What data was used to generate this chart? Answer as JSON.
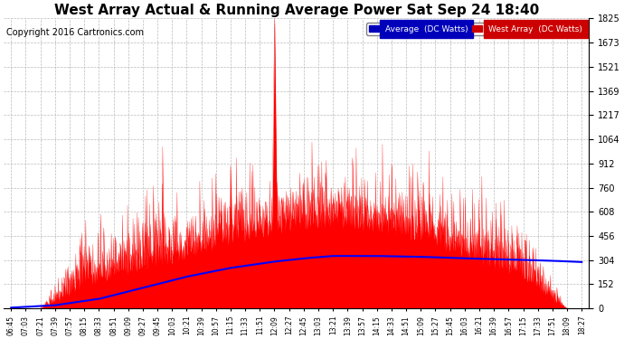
{
  "title": "West Array Actual & Running Average Power Sat Sep 24 18:40",
  "copyright": "Copyright 2016 Cartronics.com",
  "ylabel_right_values": [
    0.0,
    152.1,
    304.1,
    456.2,
    608.3,
    760.3,
    912.4,
    1064.5,
    1216.6,
    1368.6,
    1520.7,
    1672.8,
    1824.8
  ],
  "ymax": 1824.8,
  "ymin": 0.0,
  "legend_avg_label": "Average  (DC Watts)",
  "legend_west_label": "West Array  (DC Watts)",
  "legend_avg_bg": "#0000bb",
  "legend_west_bg": "#cc0000",
  "bg_color": "#ffffff",
  "plot_bg_color": "#ffffff",
  "grid_color": "#aaaaaa",
  "title_fontsize": 11,
  "copyright_fontsize": 7,
  "x_tick_labels": [
    "06:45",
    "07:03",
    "07:21",
    "07:39",
    "07:57",
    "08:15",
    "08:33",
    "08:51",
    "09:09",
    "09:27",
    "09:45",
    "10:03",
    "10:21",
    "10:39",
    "10:57",
    "11:15",
    "11:33",
    "11:51",
    "12:09",
    "12:27",
    "12:45",
    "13:03",
    "13:21",
    "13:39",
    "13:57",
    "14:15",
    "14:33",
    "14:51",
    "15:09",
    "15:27",
    "15:45",
    "16:03",
    "16:21",
    "16:39",
    "16:57",
    "17:15",
    "17:33",
    "17:51",
    "18:09",
    "18:27"
  ],
  "n_ticks": 40,
  "avg_line_x": [
    0,
    3,
    6,
    9,
    12,
    15,
    18,
    20,
    22,
    25,
    28,
    31,
    34,
    37,
    39
  ],
  "avg_line_y": [
    5,
    20,
    60,
    130,
    200,
    255,
    295,
    315,
    330,
    330,
    325,
    315,
    308,
    300,
    292
  ]
}
